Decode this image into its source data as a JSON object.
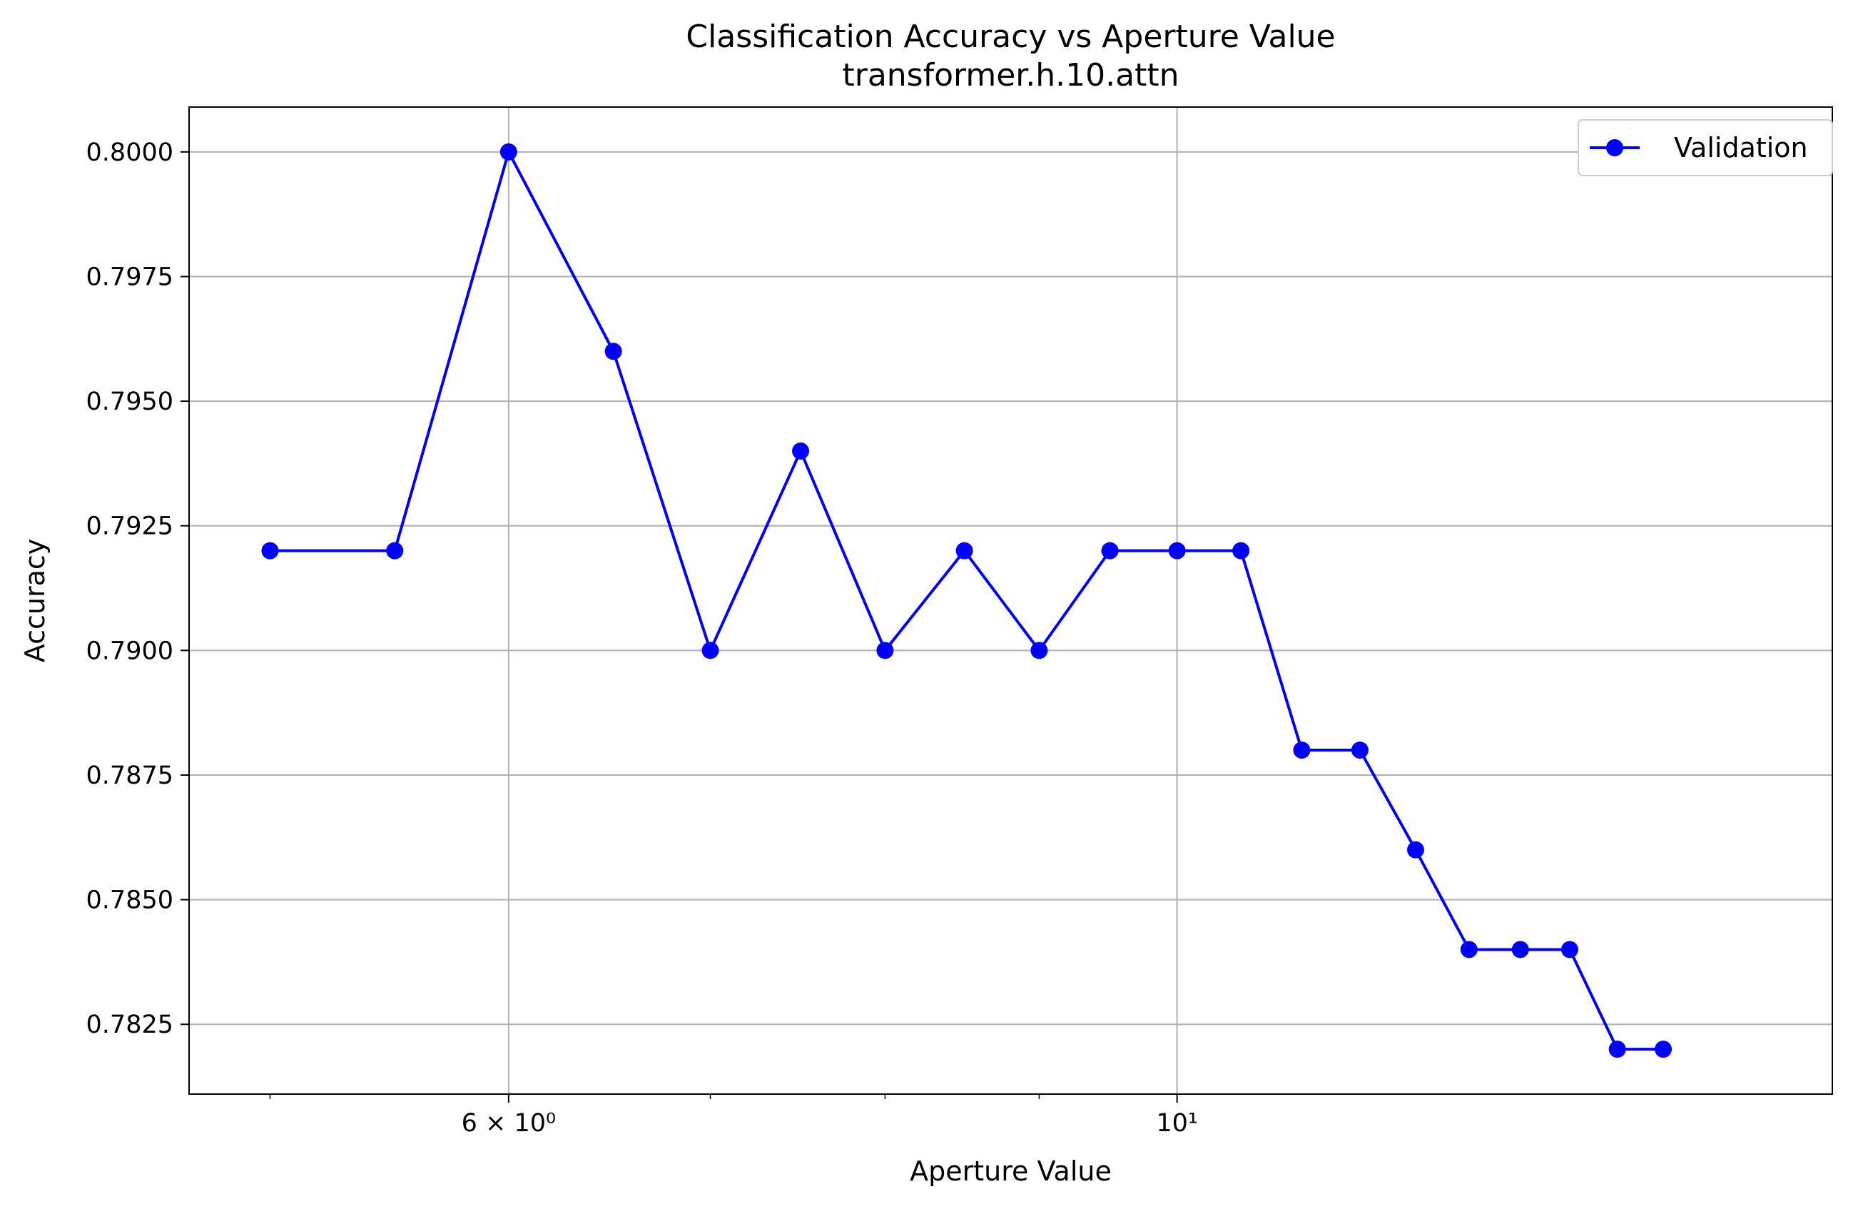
{
  "chart_data": {
    "type": "line",
    "title": "Classification Accuracy vs Aperture Value",
    "subtitle": "transformer.h.10.attn",
    "xlabel": "Aperture Value",
    "ylabel": "Accuracy",
    "xscale": "log",
    "xlim": [
      4.7,
      16.5
    ],
    "ylim": [
      0.7811,
      0.8009
    ],
    "grid": true,
    "legend_position": "top-right",
    "x_ticks": [
      {
        "value": 6,
        "label": "6 × 10⁰"
      },
      {
        "value": 10,
        "label": "10¹"
      }
    ],
    "x_minor_ticks": [
      5,
      7,
      8,
      9
    ],
    "y_ticks": [
      {
        "value": 0.7825,
        "label": "0.7825"
      },
      {
        "value": 0.785,
        "label": "0.7850"
      },
      {
        "value": 0.7875,
        "label": "0.7875"
      },
      {
        "value": 0.79,
        "label": "0.7900"
      },
      {
        "value": 0.7925,
        "label": "0.7925"
      },
      {
        "value": 0.795,
        "label": "0.7950"
      },
      {
        "value": 0.7975,
        "label": "0.7975"
      },
      {
        "value": 0.8,
        "label": "0.8000"
      }
    ],
    "series": [
      {
        "name": "Validation",
        "color": "#0000ff",
        "marker": "circle",
        "x": [
          5.0,
          5.5,
          6.0,
          6.5,
          7.0,
          7.5,
          8.0,
          8.5,
          9.0,
          9.5,
          10.0,
          10.5,
          11.0,
          11.5,
          12.0,
          12.5,
          13.0,
          13.5,
          14.0,
          14.5
        ],
        "y": [
          0.792,
          0.792,
          0.8,
          0.796,
          0.79,
          0.794,
          0.79,
          0.792,
          0.79,
          0.792,
          0.792,
          0.792,
          0.788,
          0.788,
          0.786,
          0.784,
          0.784,
          0.784,
          0.782,
          0.782
        ]
      }
    ]
  }
}
